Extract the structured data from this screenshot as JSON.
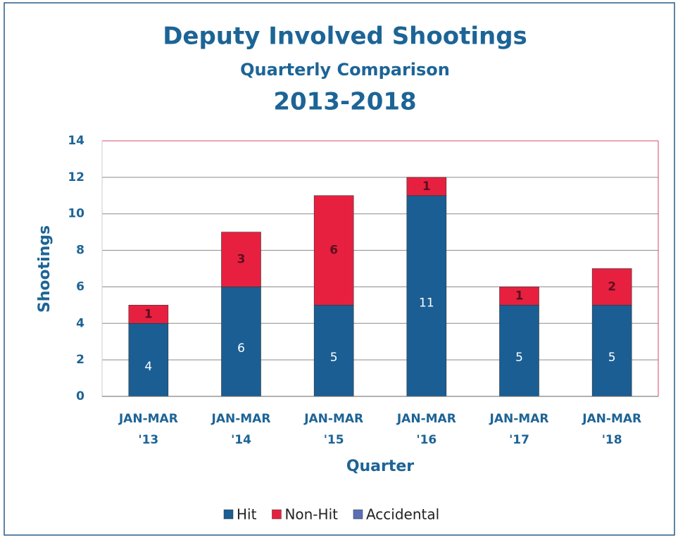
{
  "chart_data": {
    "type": "bar",
    "stacked": true,
    "title": "Deputy Involved Shootings",
    "subtitle": "Quarterly Comparison",
    "subtitle2": "2013-2018",
    "x_label": "Quarter",
    "y_label": "Shootings",
    "categories": [
      "JAN-MAR '13",
      "JAN-MAR '14",
      "JAN-MAR '15",
      "JAN-MAR '16",
      "JAN-MAR '17",
      "JAN-MAR '18"
    ],
    "series": [
      {
        "name": "Hit",
        "color": "#1a5e94",
        "values": [
          4,
          6,
          5,
          11,
          5,
          5
        ]
      },
      {
        "name": "Non-Hit",
        "color": "#e8203f",
        "values": [
          1,
          3,
          6,
          1,
          1,
          2
        ]
      },
      {
        "name": "Accidental",
        "color": "#5b6fb5",
        "values": [
          0,
          0,
          0,
          0,
          0,
          0
        ]
      }
    ],
    "ylim": [
      0,
      14
    ],
    "yticks": [
      0,
      2,
      4,
      6,
      8,
      10,
      12,
      14
    ],
    "grid": true,
    "legend": "bottom"
  }
}
